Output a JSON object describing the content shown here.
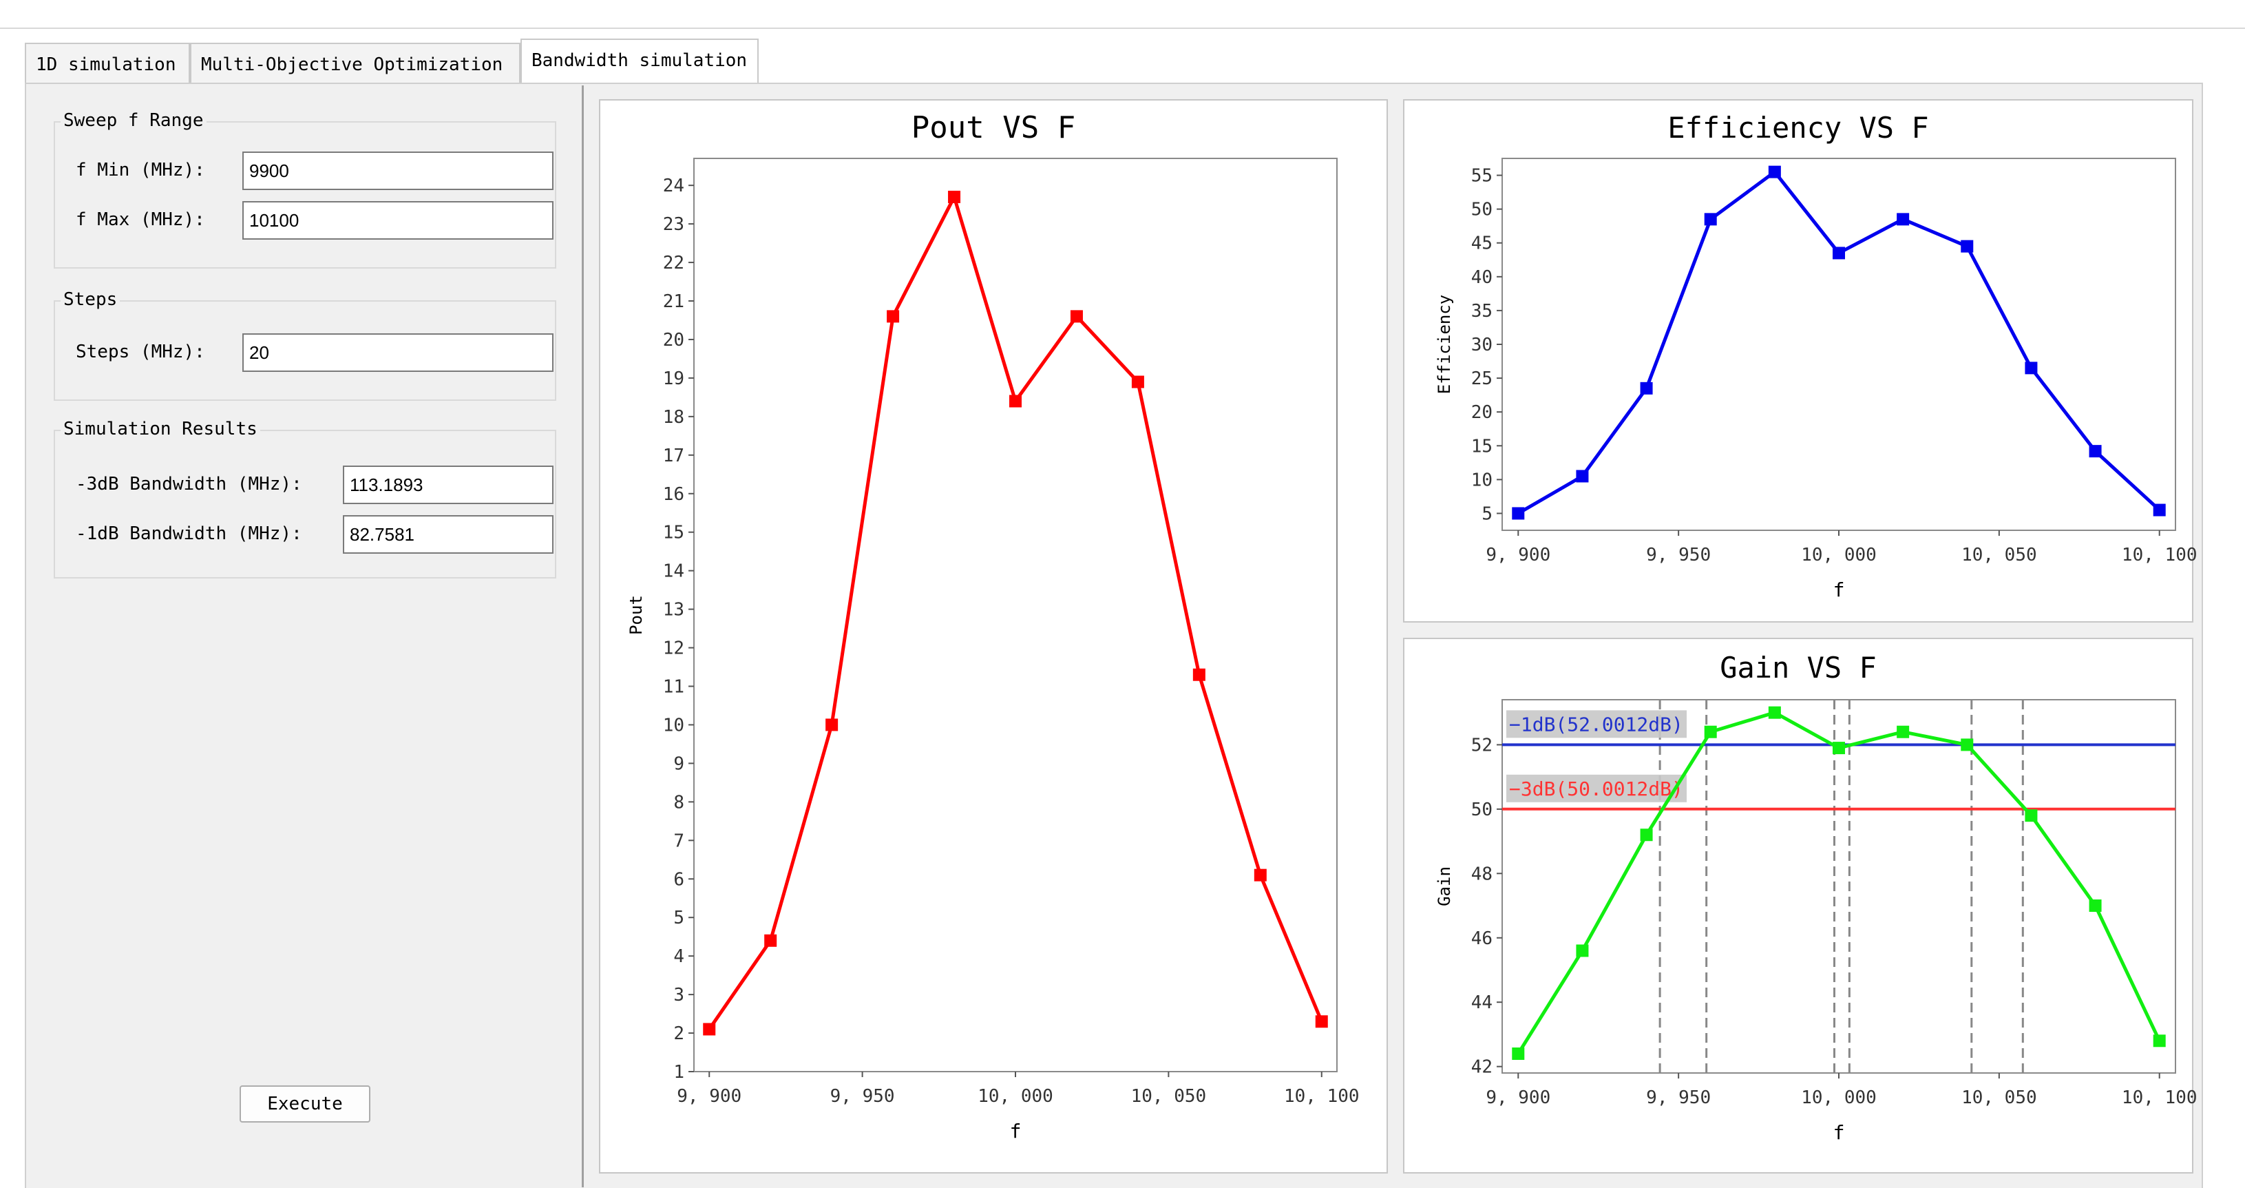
{
  "tabs": [
    {
      "label": "1D simulation",
      "active": false
    },
    {
      "label": "Multi-Objective Optimization",
      "active": false
    },
    {
      "label": "Bandwidth simulation",
      "active": true
    }
  ],
  "sweep": {
    "legend": "Sweep f Range",
    "fmin_label": "f Min (MHz):",
    "fmin_value": "9900",
    "fmax_label": "f Max (MHz):",
    "fmax_value": "10100"
  },
  "steps": {
    "legend": "Steps",
    "label": "Steps (MHz):",
    "value": "20"
  },
  "results": {
    "legend": "Simulation Results",
    "bw3_label": "-3dB Bandwidth (MHz):",
    "bw3_value": "113.1893",
    "bw1_label": "-1dB Bandwidth (MHz):",
    "bw1_value": "82.7581"
  },
  "execute_label": "Execute",
  "chart_data": [
    {
      "id": "pout",
      "type": "line",
      "title": "Pout VS F",
      "xlabel": "f",
      "ylabel": "Pout",
      "x": [
        9900,
        9920,
        9940,
        9960,
        9980,
        10000,
        10020,
        10040,
        10060,
        10080,
        10100
      ],
      "series": [
        {
          "values": [
            2.1,
            4.4,
            10.0,
            20.6,
            23.7,
            18.4,
            20.6,
            18.9,
            11.3,
            6.1,
            2.3
          ],
          "color": "#ff0000"
        }
      ],
      "xlim": [
        9895,
        10105
      ],
      "ylim": [
        1,
        24.7
      ],
      "xticks": [
        9900,
        9950,
        10000,
        10050,
        10100
      ],
      "xtick_labels": [
        "9, 900",
        "9, 950",
        "10, 000",
        "10, 050",
        "10, 100"
      ],
      "yticks": [
        1,
        2,
        3,
        4,
        5,
        6,
        7,
        8,
        9,
        10,
        11,
        12,
        13,
        14,
        15,
        16,
        17,
        18,
        19,
        20,
        21,
        22,
        23,
        24
      ],
      "ytick_labels": [
        "1",
        "2",
        "3",
        "4",
        "5",
        "6",
        "7",
        "8",
        "9",
        "10",
        "11",
        "12",
        "13",
        "14",
        "15",
        "16",
        "17",
        "18",
        "19",
        "20",
        "21",
        "22",
        "23",
        "24"
      ]
    },
    {
      "id": "eff",
      "type": "line",
      "title": "Efficiency VS F",
      "xlabel": "f",
      "ylabel": "Efficiency",
      "x": [
        9900,
        9920,
        9940,
        9960,
        9980,
        10000,
        10020,
        10040,
        10060,
        10080,
        10100
      ],
      "series": [
        {
          "values": [
            5.0,
            10.5,
            23.5,
            48.5,
            55.5,
            43.5,
            48.5,
            44.5,
            26.5,
            14.2,
            5.5
          ],
          "color": "#0000ee"
        }
      ],
      "xlim": [
        9895,
        10105
      ],
      "ylim": [
        2.5,
        57.5
      ],
      "xticks": [
        9900,
        9950,
        10000,
        10050,
        10100
      ],
      "xtick_labels": [
        "9, 900",
        "9, 950",
        "10, 000",
        "10, 050",
        "10, 100"
      ],
      "yticks": [
        5,
        10,
        15,
        20,
        25,
        30,
        35,
        40,
        45,
        50,
        55
      ],
      "ytick_labels": [
        "5",
        "10",
        "15",
        "20",
        "25",
        "30",
        "35",
        "40",
        "45",
        "50",
        "55"
      ]
    },
    {
      "id": "gain",
      "type": "line",
      "title": "Gain VS F",
      "xlabel": "f",
      "ylabel": "Gain",
      "x": [
        9900,
        9920,
        9940,
        9960,
        9980,
        10000,
        10020,
        10040,
        10060,
        10080,
        10100
      ],
      "series": [
        {
          "values": [
            42.4,
            45.6,
            49.2,
            52.4,
            53.0,
            51.9,
            52.4,
            52.0,
            49.8,
            47.0,
            42.8
          ],
          "color": "#11ee11"
        }
      ],
      "xlim": [
        9895,
        10105
      ],
      "ylim": [
        41.8,
        53.4
      ],
      "xticks": [
        9900,
        9950,
        10000,
        10050,
        10100
      ],
      "xtick_labels": [
        "9, 900",
        "9, 950",
        "10, 000",
        "10, 050",
        "10, 100"
      ],
      "yticks": [
        42,
        44,
        46,
        48,
        50,
        52
      ],
      "ytick_labels": [
        "42",
        "44",
        "46",
        "48",
        "50",
        "52"
      ],
      "hlines": [
        {
          "y": 52.0012,
          "label": "−1dB(52.0012dB)",
          "color": "#2233cc"
        },
        {
          "y": 50.0012,
          "label": "−3dB(50.0012dB)",
          "color": "#ff3333"
        }
      ],
      "vlines": [
        9944.2,
        9958.7,
        9998.6,
        10003.3,
        10041.4,
        10057.4
      ]
    }
  ]
}
